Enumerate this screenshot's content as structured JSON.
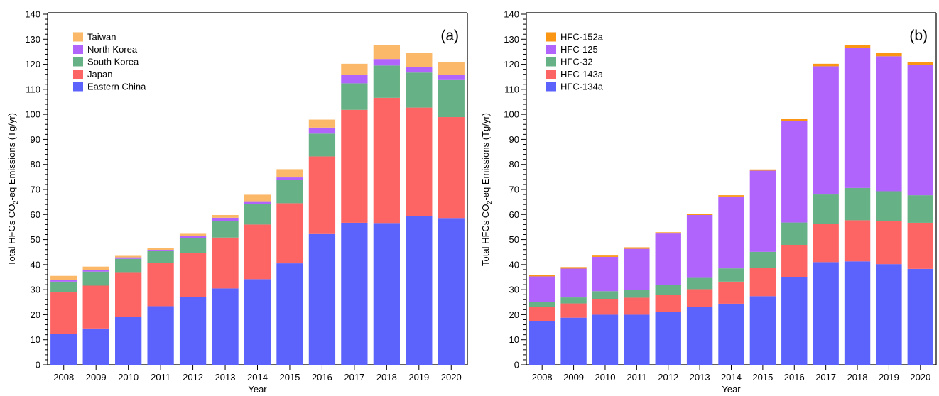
{
  "chart_data": [
    {
      "type": "bar",
      "stacked": true,
      "panel_label": "(a)",
      "xlabel": "Year",
      "ylabel": "Total HFCs CO",
      "ylabel_sub": "2",
      "ylabel_tail": "-eq Emissions (Tg/yr)",
      "ylim": [
        0,
        140
      ],
      "y_major_step": 10,
      "legend_position": "top-left",
      "categories": [
        "2008",
        "2009",
        "2010",
        "2011",
        "2012",
        "2013",
        "2014",
        "2015",
        "2016",
        "2017",
        "2018",
        "2019",
        "2020"
      ],
      "series": [
        {
          "name": "Eastern China",
          "color": "#5b63fc",
          "values": [
            12.3,
            14.5,
            19.0,
            23.4,
            27.2,
            30.5,
            34.2,
            40.5,
            52.2,
            56.7,
            56.6,
            59.3,
            58.6
          ]
        },
        {
          "name": "Japan",
          "color": "#fd6464",
          "values": [
            16.6,
            17.1,
            18.0,
            17.3,
            17.5,
            20.3,
            21.8,
            24.0,
            31.0,
            45.1,
            50.0,
            43.4,
            40.3
          ]
        },
        {
          "name": "South Korea",
          "color": "#66b185",
          "values": [
            4.3,
            5.6,
            5.3,
            4.7,
            5.8,
            6.7,
            8.3,
            9.2,
            9.1,
            10.6,
            12.9,
            14.0,
            14.8
          ]
        },
        {
          "name": "North Korea",
          "color": "#b064fb",
          "values": [
            0.7,
            0.6,
            0.6,
            0.5,
            1.0,
            1.2,
            1.0,
            1.1,
            2.4,
            3.3,
            2.6,
            2.3,
            2.2
          ]
        },
        {
          "name": "Taiwan",
          "color": "#fbb868",
          "values": [
            1.6,
            1.4,
            0.6,
            0.7,
            0.8,
            1.1,
            2.6,
            3.3,
            3.2,
            4.5,
            5.6,
            5.5,
            5.0
          ]
        }
      ]
    },
    {
      "type": "bar",
      "stacked": true,
      "panel_label": "(b)",
      "xlabel": "Year",
      "ylabel": "Total HFCs CO",
      "ylabel_sub": "2",
      "ylabel_tail": "-eq Emissions (Tg/yr)",
      "ylim": [
        0,
        140
      ],
      "y_major_step": 10,
      "legend_position": "top-left",
      "categories": [
        "2008",
        "2009",
        "2010",
        "2011",
        "2012",
        "2013",
        "2014",
        "2015",
        "2016",
        "2017",
        "2018",
        "2019",
        "2020"
      ],
      "series": [
        {
          "name": "HFC-134a",
          "color": "#5b63fc",
          "values": [
            17.5,
            18.8,
            20.0,
            20.0,
            21.2,
            23.2,
            24.4,
            27.4,
            35.1,
            41.0,
            41.3,
            40.2,
            38.3
          ]
        },
        {
          "name": "HFC-143a",
          "color": "#fd6464",
          "values": [
            5.7,
            5.7,
            6.3,
            6.8,
            6.8,
            7.0,
            8.8,
            11.3,
            12.8,
            15.3,
            16.4,
            17.1,
            18.4
          ]
        },
        {
          "name": "HFC-32",
          "color": "#66b185",
          "values": [
            1.9,
            2.4,
            3.1,
            3.1,
            3.8,
            4.5,
            5.3,
            6.4,
            8.9,
            11.7,
            12.9,
            12.0,
            11.0
          ]
        },
        {
          "name": "HFC-125",
          "color": "#b064fb",
          "values": [
            10.2,
            11.5,
            13.7,
            16.4,
            20.6,
            25.1,
            28.7,
            32.4,
            40.5,
            51.2,
            55.8,
            53.9,
            51.9
          ]
        },
        {
          "name": "HFC-152a",
          "color": "#fb9514",
          "values": [
            0.5,
            0.6,
            0.5,
            0.6,
            0.5,
            0.4,
            0.5,
            0.5,
            0.8,
            1.0,
            1.4,
            1.3,
            1.3
          ]
        }
      ]
    }
  ]
}
